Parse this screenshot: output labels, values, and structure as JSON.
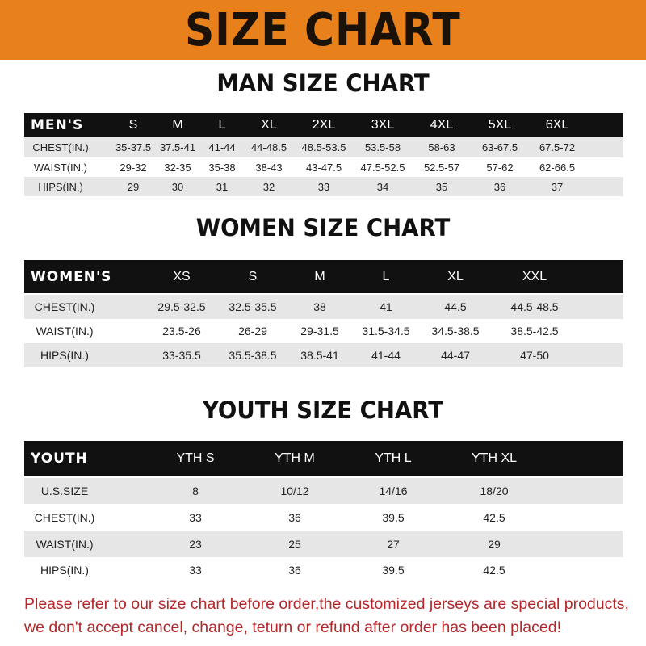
{
  "banner": {
    "title": "SIZE CHART",
    "color": "#e8801c"
  },
  "men": {
    "title": "MAN SIZE CHART",
    "header": [
      "MEN'S",
      "S",
      "M",
      "L",
      "XL",
      "2XL",
      "3XL",
      "4XL",
      "5XL",
      "6XL"
    ],
    "rows": [
      [
        "CHEST(IN.)",
        "35-37.5",
        "37.5-41",
        "41-44",
        "44-48.5",
        "48.5-53.5",
        "53.5-58",
        "58-63",
        "63-67.5",
        "67.5-72"
      ],
      [
        "WAIST(IN.)",
        "29-32",
        "32-35",
        "35-38",
        "38-43",
        "43-47.5",
        "47.5-52.5",
        "52.5-57",
        "57-62",
        "62-66.5"
      ],
      [
        "HIPS(IN.)",
        "29",
        "30",
        "31",
        "32",
        "33",
        "34",
        "35",
        "36",
        "37"
      ]
    ]
  },
  "women": {
    "title": "WOMEN SIZE CHART",
    "header": [
      "WOMEN'S",
      "XS",
      "S",
      "M",
      "L",
      "XL",
      "XXL"
    ],
    "rows": [
      [
        "CHEST(IN.)",
        "29.5-32.5",
        "32.5-35.5",
        "38",
        "41",
        "44.5",
        "44.5-48.5"
      ],
      [
        "WAIST(IN.)",
        "23.5-26",
        "26-29",
        "29-31.5",
        "31.5-34.5",
        "34.5-38.5",
        "38.5-42.5"
      ],
      [
        "HIPS(IN.)",
        "33-35.5",
        "35.5-38.5",
        "38.5-41",
        "41-44",
        "44-47",
        "47-50"
      ]
    ]
  },
  "youth": {
    "title": "YOUTH SIZE CHART",
    "header": [
      "YOUTH",
      "YTH S",
      "YTH M",
      "YTH L",
      "YTH XL"
    ],
    "rows": [
      [
        "U.S.SIZE",
        "8",
        "10/12",
        "14/16",
        "18/20"
      ],
      [
        "CHEST(IN.)",
        "33",
        "36",
        "39.5",
        "42.5"
      ],
      [
        "WAIST(IN.)",
        "23",
        "25",
        "27",
        "29"
      ],
      [
        "HIPS(IN.)",
        "33",
        "36",
        "39.5",
        "42.5"
      ]
    ]
  },
  "footer": {
    "line1": "Please refer to our size chart before order,the customized jerseys are special products,",
    "line2": "we don't accept cancel, change, teturn or refund after order has been placed!",
    "color": "#b5282a"
  }
}
